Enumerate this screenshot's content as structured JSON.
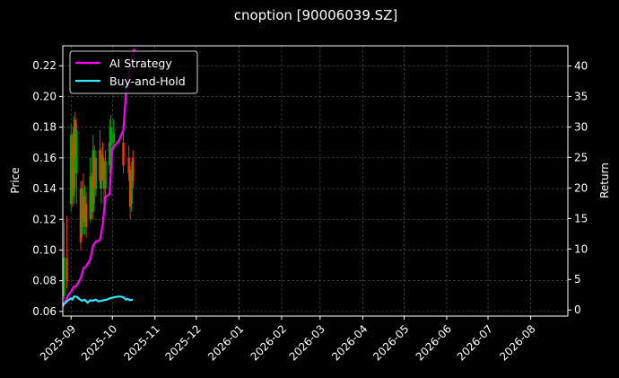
{
  "chart_data": {
    "type": "line",
    "title": "cnoption [90006039.SZ]",
    "ylabel_left": "Price",
    "ylabel_right": "Return",
    "x_ticks": [
      "2025-09",
      "2025-10",
      "2025-11",
      "2025-12",
      "2026-01",
      "2026-02",
      "2026-03",
      "2026-04",
      "2026-05",
      "2026-06",
      "2026-07",
      "2026-08"
    ],
    "y_left_ticks": [
      "0.06",
      "0.08",
      "0.10",
      "0.12",
      "0.14",
      "0.16",
      "0.18",
      "0.20",
      "0.22"
    ],
    "y_right_ticks": [
      "0",
      "5",
      "10",
      "15",
      "20",
      "25",
      "30",
      "35",
      "40"
    ],
    "xlim": [
      "2025-08-26",
      "2026-08-28"
    ],
    "ylim_left": [
      0.057,
      0.233
    ],
    "ylim_right": [
      -1,
      43.3
    ],
    "grid": true,
    "legend_position": "top-left",
    "colors": {
      "background": "#000000",
      "grid": "#555555",
      "ai": "#ff00ff",
      "bh": "#33e5ff",
      "up": "#00aa00",
      "down": "#ff3300"
    },
    "series": [
      {
        "name": "AI Strategy",
        "x": [
          "2025-08-26",
          "2025-08-28",
          "2025-08-30",
          "2025-09-01",
          "2025-09-03",
          "2025-09-05",
          "2025-09-08",
          "2025-09-10",
          "2025-09-12",
          "2025-09-15",
          "2025-09-17",
          "2025-09-19",
          "2025-09-22",
          "2025-09-24",
          "2025-09-26",
          "2025-09-29",
          "2025-10-01",
          "2025-10-03",
          "2025-10-06",
          "2025-10-08",
          "2025-10-09",
          "2025-10-10",
          "2025-10-11",
          "2025-10-13",
          "2025-10-15",
          "2025-10-16",
          "2025-10-17"
        ],
        "values": [
          0.5,
          1.5,
          2.5,
          3.0,
          3.8,
          4.0,
          5.2,
          6.8,
          7.2,
          8.3,
          10.5,
          11.2,
          11.5,
          14.0,
          18.5,
          19.0,
          26.5,
          27.0,
          27.8,
          29.0,
          29.5,
          32.5,
          36.0,
          39.0,
          41.0,
          42.0,
          42.8
        ]
      },
      {
        "name": "Buy-and-Hold",
        "x": [
          "2025-08-26",
          "2025-08-28",
          "2025-08-30",
          "2025-09-01",
          "2025-09-02",
          "2025-09-03",
          "2025-09-05",
          "2025-09-07",
          "2025-09-09",
          "2025-09-11",
          "2025-09-13",
          "2025-09-15",
          "2025-09-17",
          "2025-09-19",
          "2025-09-21",
          "2025-09-23",
          "2025-09-25",
          "2025-09-27",
          "2025-09-29",
          "2025-10-01",
          "2025-10-03",
          "2025-10-05",
          "2025-10-07",
          "2025-10-09",
          "2025-10-11",
          "2025-10-12",
          "2025-10-14",
          "2025-10-16"
        ],
        "values": [
          0.8,
          1.2,
          1.6,
          1.9,
          1.7,
          2.2,
          2.2,
          1.8,
          1.5,
          1.7,
          1.2,
          1.6,
          1.5,
          1.7,
          1.4,
          1.5,
          1.6,
          1.7,
          1.9,
          2.0,
          2.1,
          2.2,
          2.2,
          2.1,
          1.7,
          1.8,
          1.6,
          1.7
        ]
      }
    ],
    "candles": [
      {
        "x": "2025-08-27",
        "open": 0.07,
        "close": 0.095,
        "high": 0.118,
        "low": 0.068
      },
      {
        "x": "2025-08-29",
        "open": 0.095,
        "close": 0.08,
        "high": 0.122,
        "low": 0.075
      },
      {
        "x": "2025-09-01",
        "open": 0.13,
        "close": 0.175,
        "high": 0.182,
        "low": 0.125
      },
      {
        "x": "2025-09-02",
        "open": 0.17,
        "close": 0.14,
        "high": 0.176,
        "low": 0.128
      },
      {
        "x": "2025-09-03",
        "open": 0.135,
        "close": 0.18,
        "high": 0.187,
        "low": 0.13
      },
      {
        "x": "2025-09-04",
        "open": 0.185,
        "close": 0.16,
        "high": 0.19,
        "low": 0.14
      },
      {
        "x": "2025-09-05",
        "open": 0.15,
        "close": 0.178,
        "high": 0.183,
        "low": 0.13
      },
      {
        "x": "2025-09-08",
        "open": 0.14,
        "close": 0.105,
        "high": 0.145,
        "low": 0.1
      },
      {
        "x": "2025-09-09",
        "open": 0.11,
        "close": 0.14,
        "high": 0.145,
        "low": 0.108
      },
      {
        "x": "2025-09-10",
        "open": 0.135,
        "close": 0.12,
        "high": 0.15,
        "low": 0.115
      },
      {
        "x": "2025-09-11",
        "open": 0.118,
        "close": 0.135,
        "high": 0.142,
        "low": 0.11
      },
      {
        "x": "2025-09-12",
        "open": 0.13,
        "close": 0.115,
        "high": 0.138,
        "low": 0.108
      },
      {
        "x": "2025-09-15",
        "open": 0.12,
        "close": 0.148,
        "high": 0.16,
        "low": 0.118
      },
      {
        "x": "2025-09-16",
        "open": 0.145,
        "close": 0.128,
        "high": 0.15,
        "low": 0.12
      },
      {
        "x": "2025-09-17",
        "open": 0.125,
        "close": 0.165,
        "high": 0.175,
        "low": 0.12
      },
      {
        "x": "2025-09-18",
        "open": 0.16,
        "close": 0.14,
        "high": 0.168,
        "low": 0.13
      },
      {
        "x": "2025-09-19",
        "open": 0.14,
        "close": 0.16,
        "high": 0.165,
        "low": 0.135
      },
      {
        "x": "2025-09-22",
        "open": 0.165,
        "close": 0.145,
        "high": 0.178,
        "low": 0.14
      },
      {
        "x": "2025-09-23",
        "open": 0.14,
        "close": 0.162,
        "high": 0.167,
        "low": 0.13
      },
      {
        "x": "2025-09-24",
        "open": 0.162,
        "close": 0.15,
        "high": 0.17,
        "low": 0.145
      },
      {
        "x": "2025-09-25",
        "open": 0.15,
        "close": 0.14,
        "high": 0.16,
        "low": 0.12
      },
      {
        "x": "2025-09-26",
        "open": 0.14,
        "close": 0.158,
        "high": 0.165,
        "low": 0.135
      },
      {
        "x": "2025-09-29",
        "open": 0.155,
        "close": 0.17,
        "high": 0.185,
        "low": 0.15
      },
      {
        "x": "2025-09-30",
        "open": 0.168,
        "close": 0.18,
        "high": 0.188,
        "low": 0.16
      },
      {
        "x": "2025-10-02",
        "open": 0.17,
        "close": 0.176,
        "high": 0.185,
        "low": 0.165
      },
      {
        "x": "2025-10-09",
        "open": 0.17,
        "close": 0.155,
        "high": 0.182,
        "low": 0.15
      },
      {
        "x": "2025-10-13",
        "open": 0.16,
        "close": 0.15,
        "high": 0.168,
        "low": 0.145
      },
      {
        "x": "2025-10-14",
        "open": 0.15,
        "close": 0.128,
        "high": 0.155,
        "low": 0.12
      },
      {
        "x": "2025-10-15",
        "open": 0.13,
        "close": 0.152,
        "high": 0.158,
        "low": 0.125
      },
      {
        "x": "2025-10-16",
        "open": 0.16,
        "close": 0.145,
        "high": 0.165,
        "low": 0.14
      }
    ]
  }
}
